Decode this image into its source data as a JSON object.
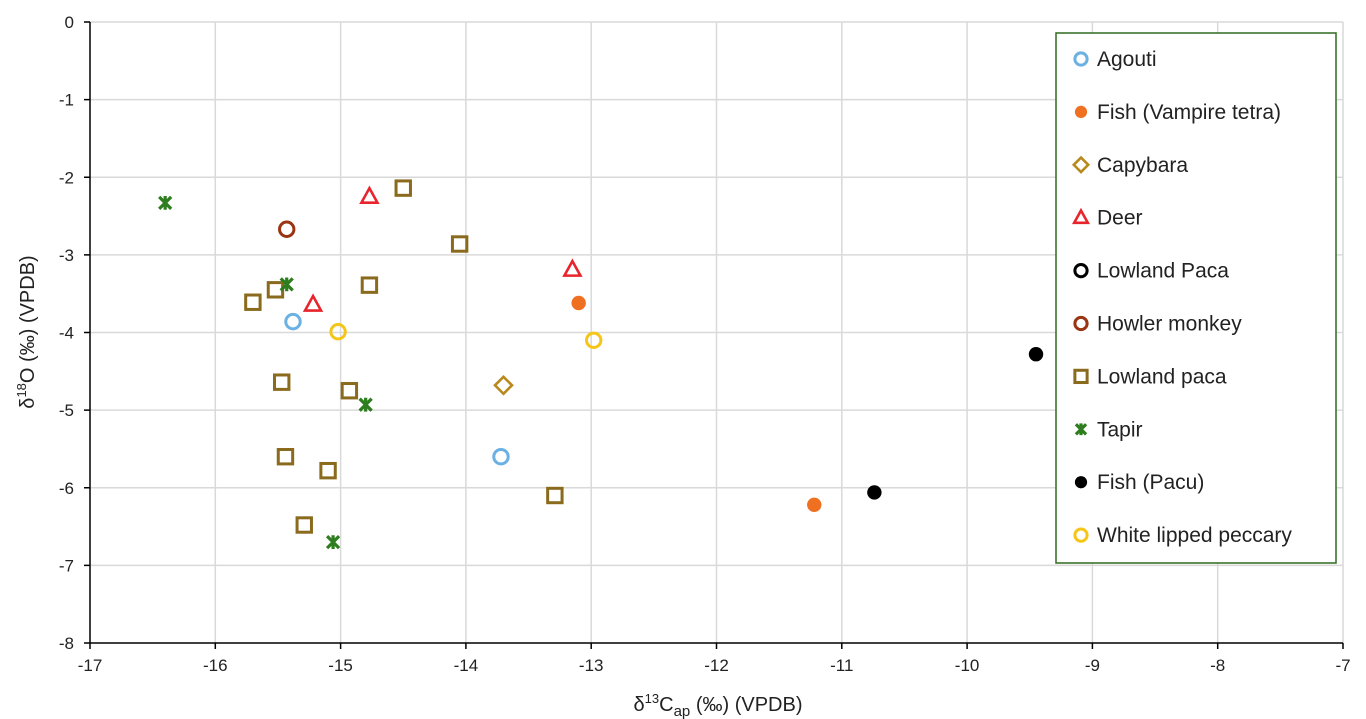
{
  "chart_data": {
    "type": "scatter",
    "title": "",
    "xlabel": "δ¹³C_ap (‰) (VPDB)",
    "ylabel": "δ¹⁸O (‰) (VPDB)",
    "xlabel_parts": {
      "a": "δ",
      "b": "13",
      "c": "C",
      "d": "ap",
      "e": " (‰) (VPDB)"
    },
    "ylabel_parts": {
      "a": "δ",
      "b": "18",
      "c": "O (‰) (VPDB)"
    },
    "xlim": [
      -17,
      -7
    ],
    "ylim": [
      -8,
      0
    ],
    "xticks": [
      -17,
      -16,
      -15,
      -14,
      -13,
      -12,
      -11,
      -10,
      -9,
      -8,
      -7
    ],
    "yticks": [
      0,
      -1,
      -2,
      -3,
      -4,
      -5,
      -6,
      -7,
      -8
    ],
    "grid": true,
    "legend_position": "right",
    "series": [
      {
        "name": "Agouti",
        "marker": "circle-open",
        "color": "#6BB1E3",
        "points": [
          [
            -15.38,
            -3.86
          ],
          [
            -13.72,
            -5.6
          ]
        ]
      },
      {
        "name": "Fish (Vampire tetra)",
        "marker": "circle-filled",
        "color": "#F07022",
        "points": [
          [
            -13.1,
            -3.62
          ],
          [
            -11.22,
            -6.22
          ]
        ]
      },
      {
        "name": "Capybara",
        "marker": "diamond-open",
        "color": "#B88A1E",
        "points": [
          [
            -13.7,
            -4.68
          ]
        ]
      },
      {
        "name": "Deer",
        "marker": "triangle-open",
        "color": "#E8242C",
        "points": [
          [
            -14.77,
            -2.25
          ],
          [
            -15.22,
            -3.64
          ],
          [
            -13.15,
            -3.19
          ]
        ]
      },
      {
        "name": "Lowland Paca",
        "marker": "circle-open",
        "color": "#000000",
        "points": []
      },
      {
        "name": "Howler monkey",
        "marker": "circle-open",
        "color": "#9A3412",
        "points": [
          [
            -15.43,
            -2.67
          ]
        ]
      },
      {
        "name": "Lowland paca",
        "marker": "square-open",
        "color": "#8A6A1C",
        "points": [
          [
            -14.5,
            -2.14
          ],
          [
            -14.05,
            -2.86
          ],
          [
            -14.77,
            -3.39
          ],
          [
            -15.7,
            -3.61
          ],
          [
            -15.52,
            -3.45
          ],
          [
            -15.47,
            -4.64
          ],
          [
            -14.93,
            -4.75
          ],
          [
            -15.44,
            -5.6
          ],
          [
            -15.1,
            -5.78
          ],
          [
            -15.29,
            -6.48
          ],
          [
            -13.29,
            -6.1
          ]
        ]
      },
      {
        "name": "Tapir",
        "marker": "star",
        "color": "#2E7D1E",
        "points": [
          [
            -16.4,
            -2.33
          ],
          [
            -15.43,
            -3.38
          ],
          [
            -14.8,
            -4.93
          ],
          [
            -15.06,
            -6.7
          ]
        ]
      },
      {
        "name": "Fish (Pacu)",
        "marker": "circle-filled",
        "color": "#000000",
        "points": [
          [
            -9.45,
            -4.28
          ],
          [
            -10.74,
            -6.06
          ]
        ]
      },
      {
        "name": "White lipped peccary",
        "marker": "circle-open",
        "color": "#F5C518",
        "points": [
          [
            -15.02,
            -3.99
          ],
          [
            -12.98,
            -4.1
          ]
        ]
      }
    ]
  }
}
